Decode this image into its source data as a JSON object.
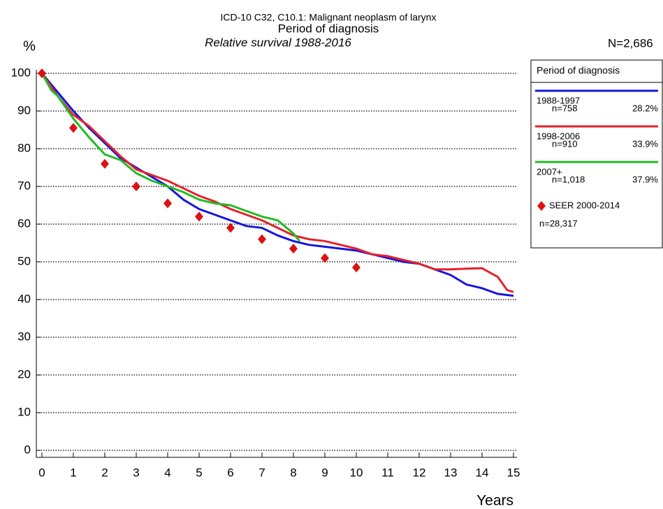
{
  "chart_data": {
    "type": "line",
    "title": "ICD-10 C32, C10.1: Malignant neoplasm of larynx",
    "subtitle": "Period of diagnosis",
    "subtitle2": "Relative survival 1988-2016",
    "ylabel": "%",
    "xlabel": "Years",
    "annotation": "N=2,686",
    "legend_title": "Period of diagnosis",
    "legend_position": "right",
    "grid": true,
    "xlim": [
      0,
      15
    ],
    "xticks": [
      0,
      1,
      2,
      3,
      4,
      5,
      6,
      7,
      8,
      9,
      10,
      11,
      12,
      13,
      14,
      15
    ],
    "ylim": [
      0,
      100
    ],
    "yticks": [
      0,
      10,
      20,
      30,
      40,
      50,
      60,
      70,
      80,
      90,
      100
    ],
    "series": [
      {
        "name": "1988-1997",
        "n_label": "n=758",
        "share_label": "28.2%",
        "color": "#1515e0",
        "x": [
          0,
          0.5,
          1,
          1.5,
          2,
          2.5,
          3,
          3.5,
          4,
          4.5,
          5,
          5.5,
          6,
          6.5,
          7,
          7.5,
          8,
          8.5,
          9,
          9.5,
          10,
          10.5,
          11,
          11.5,
          12,
          12.5,
          13,
          13.5,
          14,
          14.5,
          15
        ],
        "values": [
          100,
          95,
          90,
          85.5,
          81.5,
          77.5,
          75,
          72.5,
          70,
          66.5,
          64,
          62.5,
          61,
          59.5,
          59,
          57,
          55.5,
          54.5,
          54,
          53.5,
          53,
          52,
          51,
          50,
          49.5,
          48,
          46.5,
          44,
          43,
          41.5,
          41
        ]
      },
      {
        "name": "1998-2006",
        "n_label": "n=910",
        "share_label": "33.9%",
        "color": "#e8202a",
        "x": [
          0,
          0.5,
          1,
          1.5,
          2,
          2.5,
          3,
          3.5,
          4,
          4.5,
          5,
          5.5,
          6,
          6.5,
          7,
          7.5,
          8,
          8.5,
          9,
          9.5,
          10,
          10.5,
          11,
          11.5,
          12,
          12.5,
          13,
          13.5,
          14,
          14.5,
          14.8,
          15
        ],
        "values": [
          100,
          94,
          89,
          86,
          82,
          78,
          74.5,
          73,
          71.5,
          69.5,
          67.5,
          66,
          64,
          62.5,
          61,
          59,
          57,
          56,
          55.5,
          54.5,
          53.5,
          52,
          51.5,
          50.5,
          49.5,
          48,
          48,
          48.2,
          48.3,
          46,
          42.5,
          42
        ]
      },
      {
        "name": "2007+",
        "n_label": "n=1,018",
        "share_label": "37.9%",
        "color": "#22bb22",
        "x": [
          0,
          0.3,
          0.5,
          1,
          1.5,
          2,
          2.5,
          3,
          3.5,
          4,
          4.5,
          5,
          5.5,
          6,
          6.5,
          7,
          7.5,
          8,
          8.2
        ],
        "values": [
          100,
          95.5,
          94,
          88,
          83,
          78.5,
          77,
          73.5,
          71.5,
          70,
          68.5,
          66.5,
          65.5,
          65,
          63.5,
          62,
          61,
          57.5,
          55.5
        ]
      },
      {
        "name": "SEER 2000-2014",
        "n_label": "n=28,317",
        "color": "#dd1111",
        "marker": "diamond",
        "x": [
          0,
          1,
          2,
          3,
          4,
          5,
          6,
          7,
          8,
          9,
          10
        ],
        "values": [
          100,
          85.5,
          76,
          70,
          65.5,
          62,
          59,
          56,
          53.5,
          51,
          48.5
        ]
      }
    ]
  }
}
